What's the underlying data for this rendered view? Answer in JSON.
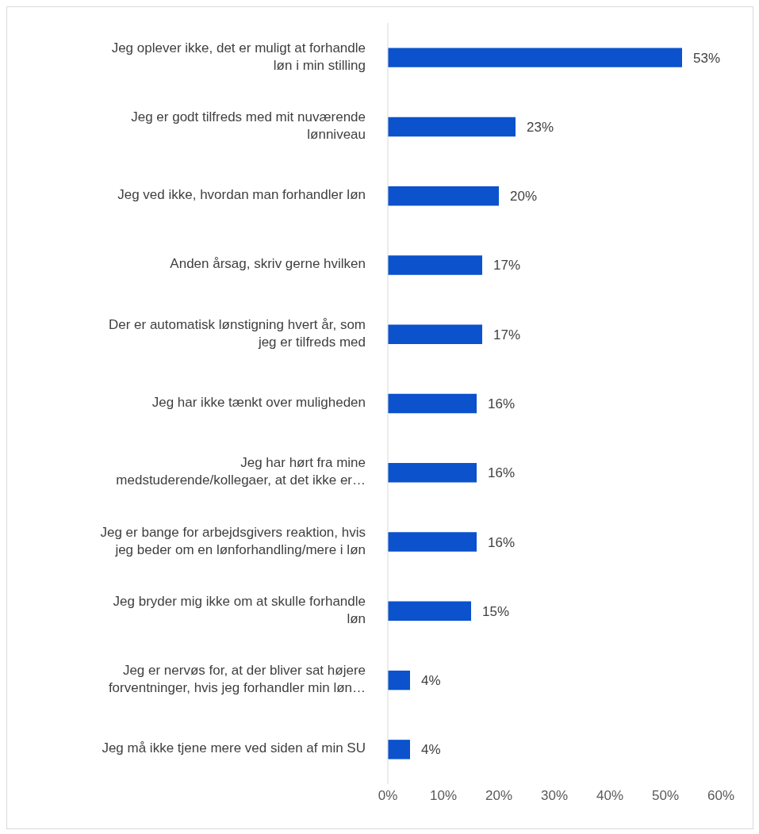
{
  "chart_data": {
    "type": "bar",
    "orientation": "horizontal",
    "categories": [
      "Jeg oplever ikke, det er muligt at forhandle løn i min stilling",
      "Jeg er godt tilfreds med mit nuværende lønniveau",
      "Jeg ved ikke, hvordan man forhandler løn",
      "Anden årsag, skriv gerne hvilken",
      "Der er automatisk lønstigning hvert år, som jeg er tilfreds med",
      "Jeg har ikke tænkt over muligheden",
      "Jeg har hørt fra mine medstuderende/kollegaer, at det ikke er…",
      "Jeg er bange for arbejdsgivers reaktion, hvis jeg beder om en lønforhandling/mere i løn",
      "Jeg bryder mig ikke om at skulle forhandle løn",
      "Jeg er nervøs for, at der bliver sat højere forventninger, hvis jeg forhandler min løn…",
      "Jeg må ikke tjene mere ved siden af min SU"
    ],
    "values": [
      53,
      23,
      20,
      17,
      17,
      16,
      16,
      16,
      15,
      4,
      4
    ],
    "value_labels": [
      "53%",
      "23%",
      "20%",
      "17%",
      "17%",
      "16%",
      "16%",
      "16%",
      "15%",
      "4%",
      "4%"
    ],
    "color": "#0b52cc",
    "xlim": [
      0,
      60
    ],
    "xticks": [
      {
        "value": 0,
        "label": "0%"
      },
      {
        "value": 10,
        "label": "10%"
      },
      {
        "value": 20,
        "label": "20%"
      },
      {
        "value": 30,
        "label": "30%"
      },
      {
        "value": 40,
        "label": "40%"
      },
      {
        "value": 50,
        "label": "50%"
      },
      {
        "value": 60,
        "label": "60%"
      }
    ],
    "grid": false,
    "legend": false
  }
}
